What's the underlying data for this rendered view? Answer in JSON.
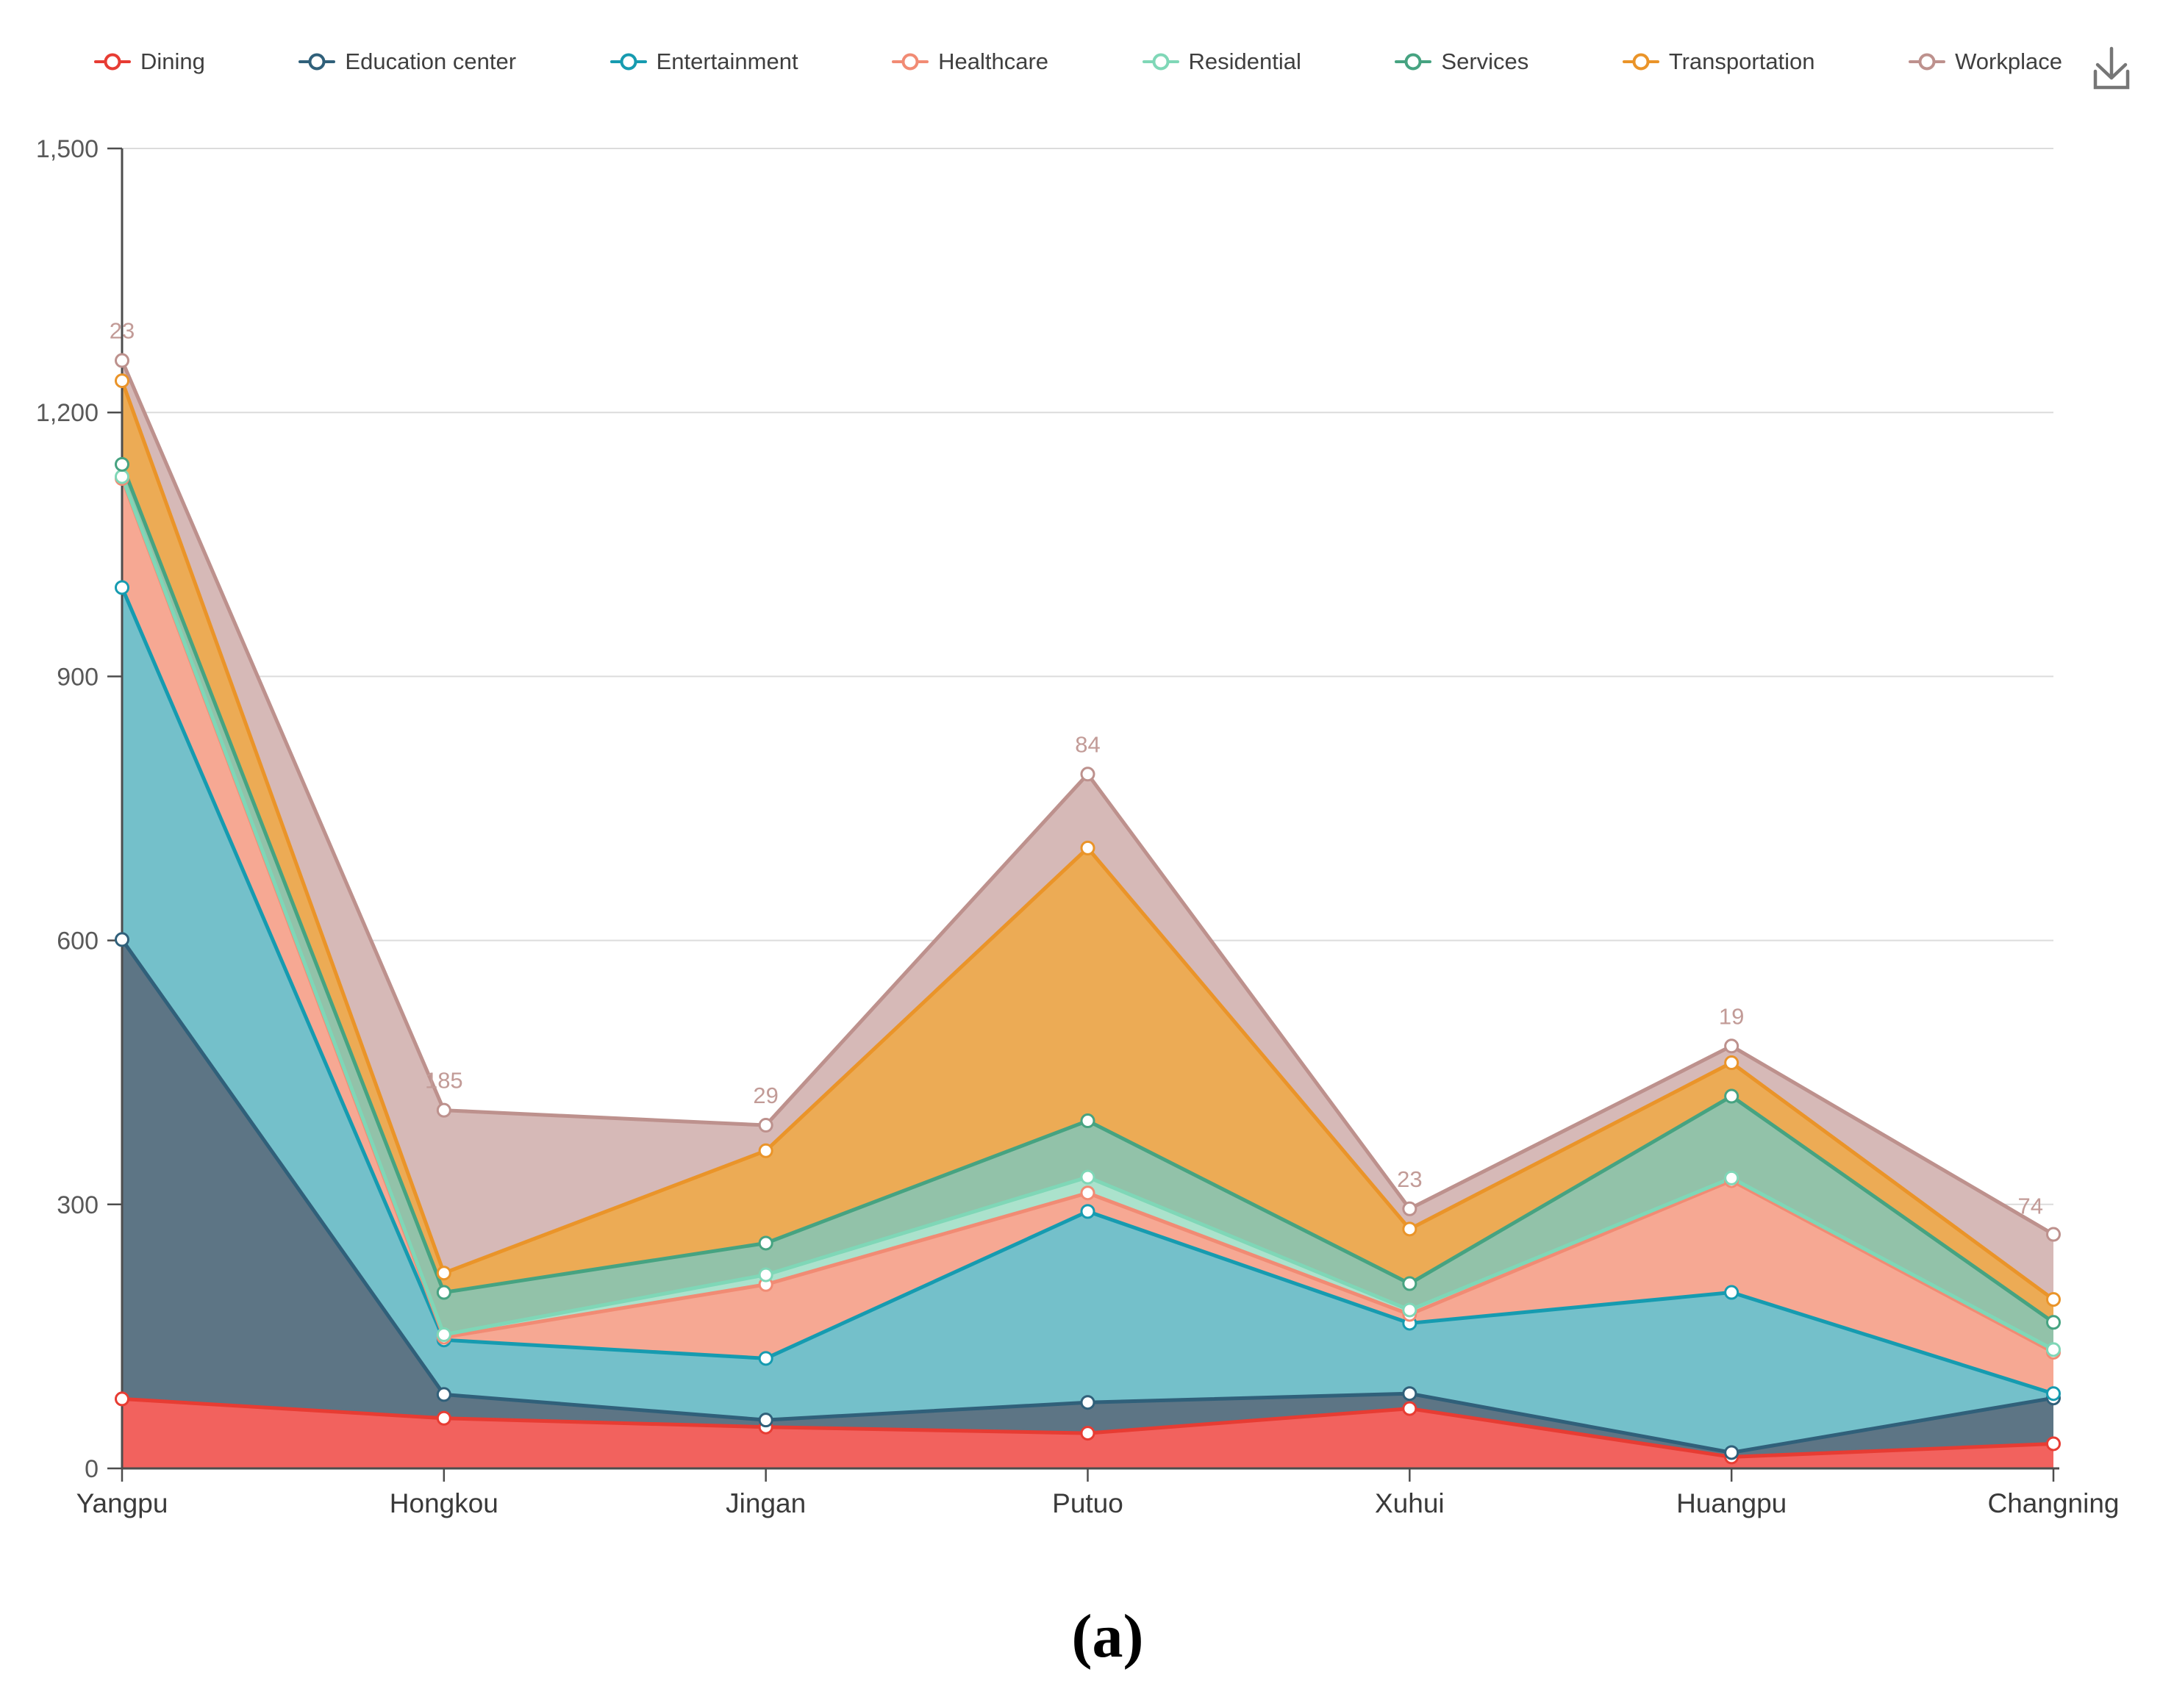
{
  "legend": {
    "items": [
      "Dining",
      "Education center",
      "Entertainment",
      "Healthcare",
      "Residential",
      "Services",
      "Transportation",
      "Workplace"
    ]
  },
  "toolbar": {
    "icons": [
      {
        "name": "download-icon",
        "color": "#767676"
      }
    ]
  },
  "caption": "(a)",
  "chart_data": {
    "type": "area",
    "stacked": true,
    "title": "",
    "xlabel": "",
    "ylabel": "",
    "categories": [
      "Yangpu",
      "Hongkou",
      "Jingan",
      "Putuo",
      "Xuhui",
      "Huangpu",
      "Changning"
    ],
    "series": [
      {
        "name": "Dining",
        "color": "#e73c33",
        "fill": "#f2625e",
        "values": [
          79,
          57,
          47,
          40,
          68,
          13,
          28
        ]
      },
      {
        "name": "Education center",
        "color": "#30607a",
        "fill": "#5d7585",
        "values": [
          522,
          27,
          8,
          35,
          17,
          5,
          52
        ]
      },
      {
        "name": "Entertainment",
        "color": "#169bb0",
        "fill": "#74c0ca",
        "values": [
          400,
          62,
          70,
          217,
          80,
          182,
          5
        ]
      },
      {
        "name": "Healthcare",
        "color": "#f18b74",
        "fill": "#f6a893",
        "values": [
          124,
          3,
          84,
          21,
          10,
          127,
          47
        ]
      },
      {
        "name": "Residential",
        "color": "#7fd7b7",
        "fill": "#abe2cc",
        "values": [
          2,
          3,
          11,
          18,
          5,
          3,
          3
        ]
      },
      {
        "name": "Services",
        "color": "#46a381",
        "fill": "#92c2a9",
        "values": [
          14,
          48,
          36,
          64,
          30,
          93,
          31
        ]
      },
      {
        "name": "Transportation",
        "color": "#ea9429",
        "fill": "#ecab55",
        "values": [
          95,
          22,
          105,
          310,
          62,
          38,
          26
        ]
      },
      {
        "name": "Workplace",
        "color": "#bd918d",
        "fill": "#d6b9b7",
        "values": [
          23,
          185,
          29,
          84,
          23,
          19,
          74
        ]
      }
    ],
    "label_series": "Workplace",
    "point_labels": [
      "23",
      "185",
      "29",
      "84",
      "23",
      "19",
      "74"
    ],
    "label_color": "#c29b97",
    "ylim": [
      0,
      1500
    ],
    "yticks": [
      {
        "value": 0,
        "label": "0"
      },
      {
        "value": 300,
        "label": "300"
      },
      {
        "value": 600,
        "label": "600"
      },
      {
        "value": 900,
        "label": "900"
      },
      {
        "value": 1200,
        "label": "1,200"
      },
      {
        "value": 1500,
        "label": "1,500"
      }
    ],
    "grid": true,
    "legend_position": "top",
    "axis_color": "#4d4d4d",
    "grid_color": "#dcdcdc",
    "tick_label_color": "#595959",
    "category_label_color": "#3a3a3a"
  }
}
